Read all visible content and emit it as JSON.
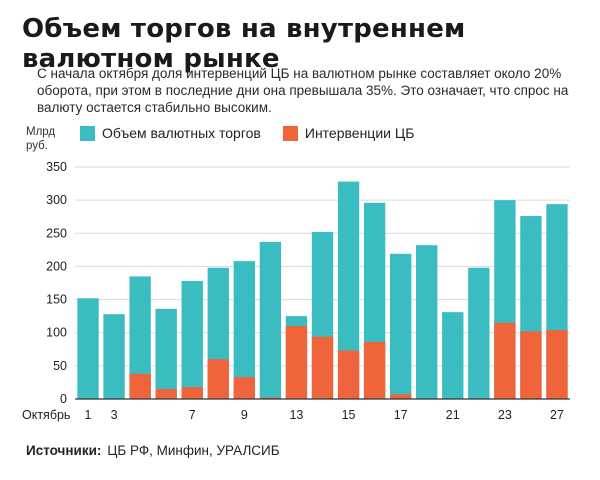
{
  "title": "Объем торгов на внутреннем валютном рынке",
  "subtitle": "С начала октября доля интервенций ЦБ на валютном рынке составляет около 20% оборота, при этом в последние дни она превышала 35%. Это означает, что спрос на валюту остается стабильно высоким.",
  "unit_line1": "Млрд",
  "unit_line2": "руб.",
  "source_label": "Источники:",
  "source_text": "ЦБ РФ, Минфин, УРАЛСИБ",
  "colors": {
    "volume": "#3bbcc0",
    "interventions": "#f0643c",
    "grid": "#d9d9d9"
  },
  "chart_data": {
    "type": "bar",
    "stacked": "overlay",
    "xlabel": "Октябрь",
    "ylim": [
      0,
      350
    ],
    "yticks": [
      0,
      50,
      100,
      150,
      200,
      250,
      300,
      350
    ],
    "x_tick_labels": [
      "1",
      "3",
      "",
      "",
      "7",
      "9",
      "",
      "13",
      "15",
      "",
      "17",
      "",
      "21",
      "",
      "23",
      "27"
    ],
    "legend_position": "top",
    "grid": true,
    "series": [
      {
        "name": "Объем валютных торгов",
        "values": [
          152,
          128,
          185,
          136,
          178,
          198,
          208,
          237,
          125,
          252,
          328,
          296,
          219,
          232,
          131,
          198,
          300,
          276,
          294
        ]
      },
      {
        "name": "Интервенции ЦБ",
        "values": [
          0,
          0,
          38,
          15,
          18,
          60,
          33,
          2,
          110,
          94,
          73,
          86,
          7,
          0,
          0,
          0,
          115,
          102,
          104
        ]
      }
    ],
    "tick_positions": [
      0,
      1,
      4,
      6,
      8,
      10,
      12,
      14,
      16,
      18
    ]
  }
}
